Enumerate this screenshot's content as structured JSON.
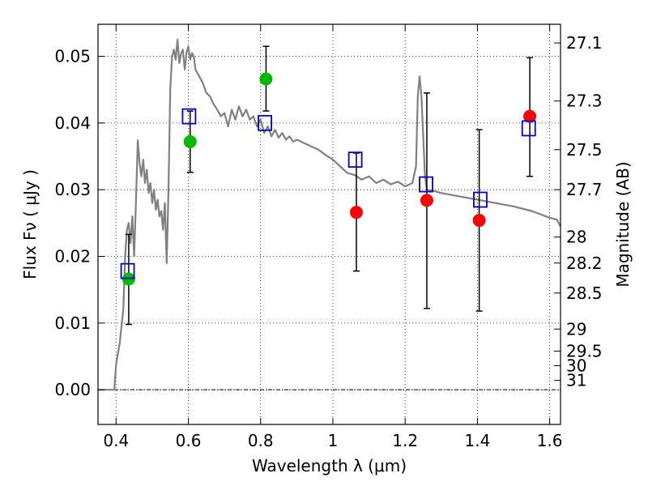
{
  "chart_data": {
    "type": "scatter",
    "xlabel": "Wavelength  λ (μm)",
    "ylabel": "Flux  Fν  ( μJy )",
    "ylabel_right": "Magnitude (AB)",
    "xlim": [
      0.35,
      1.63
    ],
    "ylim": [
      -0.0052,
      0.0548
    ],
    "grid": true,
    "x_ticks": [
      {
        "value": 0.4,
        "label": "0.4"
      },
      {
        "value": 0.6,
        "label": "0.6"
      },
      {
        "value": 0.8,
        "label": "0.8"
      },
      {
        "value": 1.0,
        "label": "1"
      },
      {
        "value": 1.2,
        "label": "1.2"
      },
      {
        "value": 1.4,
        "label": "1.4"
      },
      {
        "value": 1.6,
        "label": "1.6"
      }
    ],
    "y_ticks": [
      {
        "value": 0.0,
        "label": "0.00"
      },
      {
        "value": 0.01,
        "label": "0.01"
      },
      {
        "value": 0.02,
        "label": "0.02"
      },
      {
        "value": 0.03,
        "label": "0.03"
      },
      {
        "value": 0.04,
        "label": "0.04"
      },
      {
        "value": 0.05,
        "label": "0.05"
      }
    ],
    "mag_ticks": [
      {
        "value": 0.052,
        "label": "27.1"
      },
      {
        "value": 0.0433,
        "label": "27.3"
      },
      {
        "value": 0.036,
        "label": "27.5"
      },
      {
        "value": 0.03,
        "label": "27.7"
      },
      {
        "value": 0.0229,
        "label": "28"
      },
      {
        "value": 0.019,
        "label": "28.2"
      },
      {
        "value": 0.0145,
        "label": "28.5"
      },
      {
        "value": 0.0091,
        "label": "29"
      },
      {
        "value": 0.0058,
        "label": "29.5"
      },
      {
        "value": 0.0036,
        "label": "30"
      },
      {
        "value": 0.0014,
        "label": "31"
      }
    ],
    "series": [
      {
        "kind": "line",
        "color": "#808080",
        "x": [
          0.35,
          0.395,
          0.4,
          0.41,
          0.42,
          0.425,
          0.43,
          0.435,
          0.44,
          0.445,
          0.45,
          0.455,
          0.46,
          0.465,
          0.47,
          0.475,
          0.48,
          0.485,
          0.49,
          0.495,
          0.5,
          0.505,
          0.51,
          0.515,
          0.52,
          0.525,
          0.53,
          0.535,
          0.54,
          0.545,
          0.55,
          0.555,
          0.56,
          0.565,
          0.57,
          0.575,
          0.58,
          0.585,
          0.59,
          0.595,
          0.6,
          0.605,
          0.61,
          0.615,
          0.62,
          0.63,
          0.64,
          0.65,
          0.66,
          0.67,
          0.68,
          0.69,
          0.7,
          0.71,
          0.72,
          0.73,
          0.74,
          0.75,
          0.76,
          0.77,
          0.78,
          0.79,
          0.8,
          0.81,
          0.82,
          0.83,
          0.84,
          0.85,
          0.86,
          0.87,
          0.88,
          0.89,
          0.9,
          0.92,
          0.94,
          0.96,
          0.98,
          1.0,
          1.02,
          1.04,
          1.06,
          1.08,
          1.1,
          1.12,
          1.14,
          1.16,
          1.18,
          1.2,
          1.22,
          1.23,
          1.235,
          1.24,
          1.245,
          1.25,
          1.255,
          1.26,
          1.28,
          1.3,
          1.35,
          1.4,
          1.45,
          1.5,
          1.55,
          1.58,
          1.6,
          1.62,
          1.63
        ],
        "y": [
          0.0,
          0.0,
          0.0038,
          0.007,
          0.012,
          0.02,
          0.024,
          0.025,
          0.022,
          0.026,
          0.02,
          0.028,
          0.0374,
          0.034,
          0.032,
          0.0345,
          0.031,
          0.033,
          0.0295,
          0.031,
          0.028,
          0.03,
          0.027,
          0.0285,
          0.026,
          0.0268,
          0.024,
          0.028,
          0.019,
          0.03,
          0.045,
          0.05,
          0.051,
          0.0495,
          0.0525,
          0.049,
          0.0505,
          0.051,
          0.048,
          0.0505,
          0.0515,
          0.0495,
          0.0505,
          0.05,
          0.048,
          0.047,
          0.046,
          0.0445,
          0.044,
          0.0428,
          0.042,
          0.041,
          0.0415,
          0.0395,
          0.042,
          0.0405,
          0.0425,
          0.041,
          0.042,
          0.0405,
          0.041,
          0.0395,
          0.0405,
          0.0385,
          0.0395,
          0.038,
          0.039,
          0.0378,
          0.0385,
          0.0375,
          0.038,
          0.0372,
          0.0375,
          0.037,
          0.0365,
          0.036,
          0.0352,
          0.0345,
          0.0335,
          0.0325,
          0.0322,
          0.0315,
          0.032,
          0.031,
          0.0315,
          0.0308,
          0.0312,
          0.0305,
          0.031,
          0.0335,
          0.044,
          0.047,
          0.044,
          0.038,
          0.032,
          0.03,
          0.0298,
          0.0295,
          0.029,
          0.0285,
          0.028,
          0.0275,
          0.0268,
          0.0262,
          0.0258,
          0.0255,
          0.0245
        ]
      },
      {
        "kind": "errorbar",
        "color": "#000000",
        "x": [
          0.435,
          0.605,
          0.815,
          1.065,
          1.26,
          1.405,
          1.545
        ],
        "ylow": [
          0.0098,
          0.0326,
          0.0418,
          0.0178,
          0.0122,
          0.0118,
          0.032
        ],
        "yhigh": [
          0.0233,
          0.0418,
          0.0515,
          0.0355,
          0.0445,
          0.039,
          0.0498
        ]
      },
      {
        "kind": "marker",
        "marker": "circle",
        "color": "#00bb00",
        "x": [
          0.435,
          0.605,
          0.815
        ],
        "y": [
          0.0166,
          0.0372,
          0.0466
        ]
      },
      {
        "kind": "marker",
        "marker": "circle",
        "color": "#ff0000",
        "x": [
          1.065,
          1.26,
          1.405,
          1.545
        ],
        "y": [
          0.0266,
          0.0284,
          0.0254,
          0.041
        ]
      },
      {
        "kind": "marker",
        "marker": "square-open",
        "color": "#0000cc",
        "x": [
          0.432,
          0.602,
          0.812,
          1.062,
          1.258,
          1.408,
          1.542
        ],
        "y": [
          0.0178,
          0.041,
          0.04,
          0.0345,
          0.0308,
          0.0285,
          0.0392
        ]
      }
    ]
  }
}
